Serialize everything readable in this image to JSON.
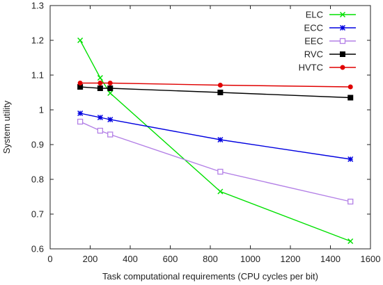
{
  "chart_data": {
    "type": "line",
    "title": "",
    "xlabel": "Task computational requirements (CPU cycles per bit)",
    "ylabel": "System utility",
    "xlim": [
      0,
      1600
    ],
    "ylim": [
      0.6,
      1.3
    ],
    "xticks": [
      0,
      200,
      400,
      600,
      800,
      1000,
      1200,
      1400,
      1600
    ],
    "yticks": [
      0.6,
      0.7,
      0.8,
      0.9,
      1.0,
      1.1,
      1.2,
      1.3
    ],
    "ytick_labels": [
      "0.6",
      "0.7",
      "0.8",
      "0.9",
      "1",
      "1.1",
      "1.2",
      "1.3"
    ],
    "grid": false,
    "legend_position": "top-right",
    "series": [
      {
        "name": "ELC",
        "color": "#00e000",
        "marker": "x",
        "x": [
          150,
          250,
          300,
          850,
          1500
        ],
        "y": [
          1.2,
          1.092,
          1.048,
          0.765,
          0.622
        ]
      },
      {
        "name": "ECC",
        "color": "#0000e0",
        "marker": "star",
        "x": [
          150,
          250,
          300,
          850,
          1500
        ],
        "y": [
          0.99,
          0.978,
          0.972,
          0.914,
          0.858
        ]
      },
      {
        "name": "EEC",
        "color": "#b380e6",
        "marker": "open-square",
        "x": [
          150,
          250,
          300,
          850,
          1500
        ],
        "y": [
          0.966,
          0.94,
          0.929,
          0.822,
          0.736
        ]
      },
      {
        "name": "RVC",
        "color": "#000000",
        "marker": "filled-square",
        "x": [
          150,
          250,
          300,
          850,
          1500
        ],
        "y": [
          1.066,
          1.062,
          1.062,
          1.05,
          1.035
        ]
      },
      {
        "name": "HVTC",
        "color": "#e00000",
        "marker": "filled-circle",
        "x": [
          150,
          250,
          300,
          850,
          1500
        ],
        "y": [
          1.077,
          1.077,
          1.077,
          1.071,
          1.066
        ]
      }
    ]
  }
}
